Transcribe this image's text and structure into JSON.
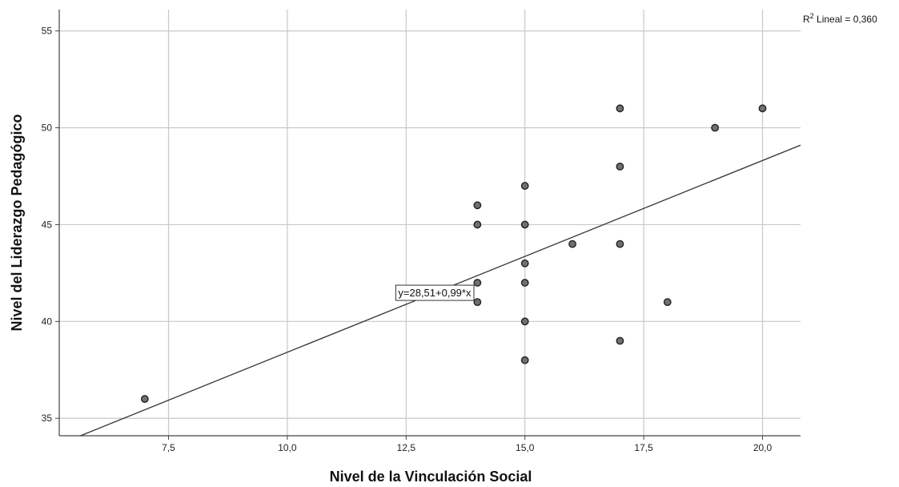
{
  "chart_data": {
    "type": "scatter",
    "xlabel": "Nivel de la Vinculación Social",
    "ylabel": "Nivel del Liderazgo Pedagógico",
    "xlim": [
      5.2,
      20.8
    ],
    "ylim": [
      34.1,
      56.1
    ],
    "x_ticks": [
      7.5,
      10.0,
      12.5,
      15.0,
      17.5,
      20.0
    ],
    "x_tick_labels": [
      "7,5",
      "10,0",
      "12,5",
      "15,0",
      "17,5",
      "20,0"
    ],
    "y_ticks": [
      35,
      40,
      45,
      50,
      55
    ],
    "y_tick_labels": [
      "35",
      "40",
      "45",
      "50",
      "55"
    ],
    "grid": true,
    "points": [
      {
        "x": 7,
        "y": 36
      },
      {
        "x": 14,
        "y": 46
      },
      {
        "x": 14,
        "y": 45
      },
      {
        "x": 14,
        "y": 42
      },
      {
        "x": 14,
        "y": 41
      },
      {
        "x": 15,
        "y": 47
      },
      {
        "x": 15,
        "y": 45
      },
      {
        "x": 15,
        "y": 43
      },
      {
        "x": 15,
        "y": 42
      },
      {
        "x": 15,
        "y": 40
      },
      {
        "x": 15,
        "y": 38
      },
      {
        "x": 16,
        "y": 44
      },
      {
        "x": 17,
        "y": 51
      },
      {
        "x": 17,
        "y": 48
      },
      {
        "x": 17,
        "y": 44
      },
      {
        "x": 17,
        "y": 39
      },
      {
        "x": 18,
        "y": 41
      },
      {
        "x": 19,
        "y": 50
      },
      {
        "x": 20,
        "y": 51
      }
    ],
    "fit_line": {
      "intercept": 28.51,
      "slope": 0.99,
      "x_range": [
        5.2,
        20.8
      ]
    },
    "equation_label": "y=28,51+0,99*x",
    "equation_anchor": {
      "x": 13.1,
      "y": 41.5
    },
    "r2": {
      "prefix": "R",
      "superscript": "2",
      "text": " Lineal = 0,360"
    },
    "colors": {
      "point_fill": "#707070",
      "point_stroke": "#222222",
      "line": "#333333",
      "grid": "#c8c8c8",
      "axis": "#444444"
    }
  }
}
